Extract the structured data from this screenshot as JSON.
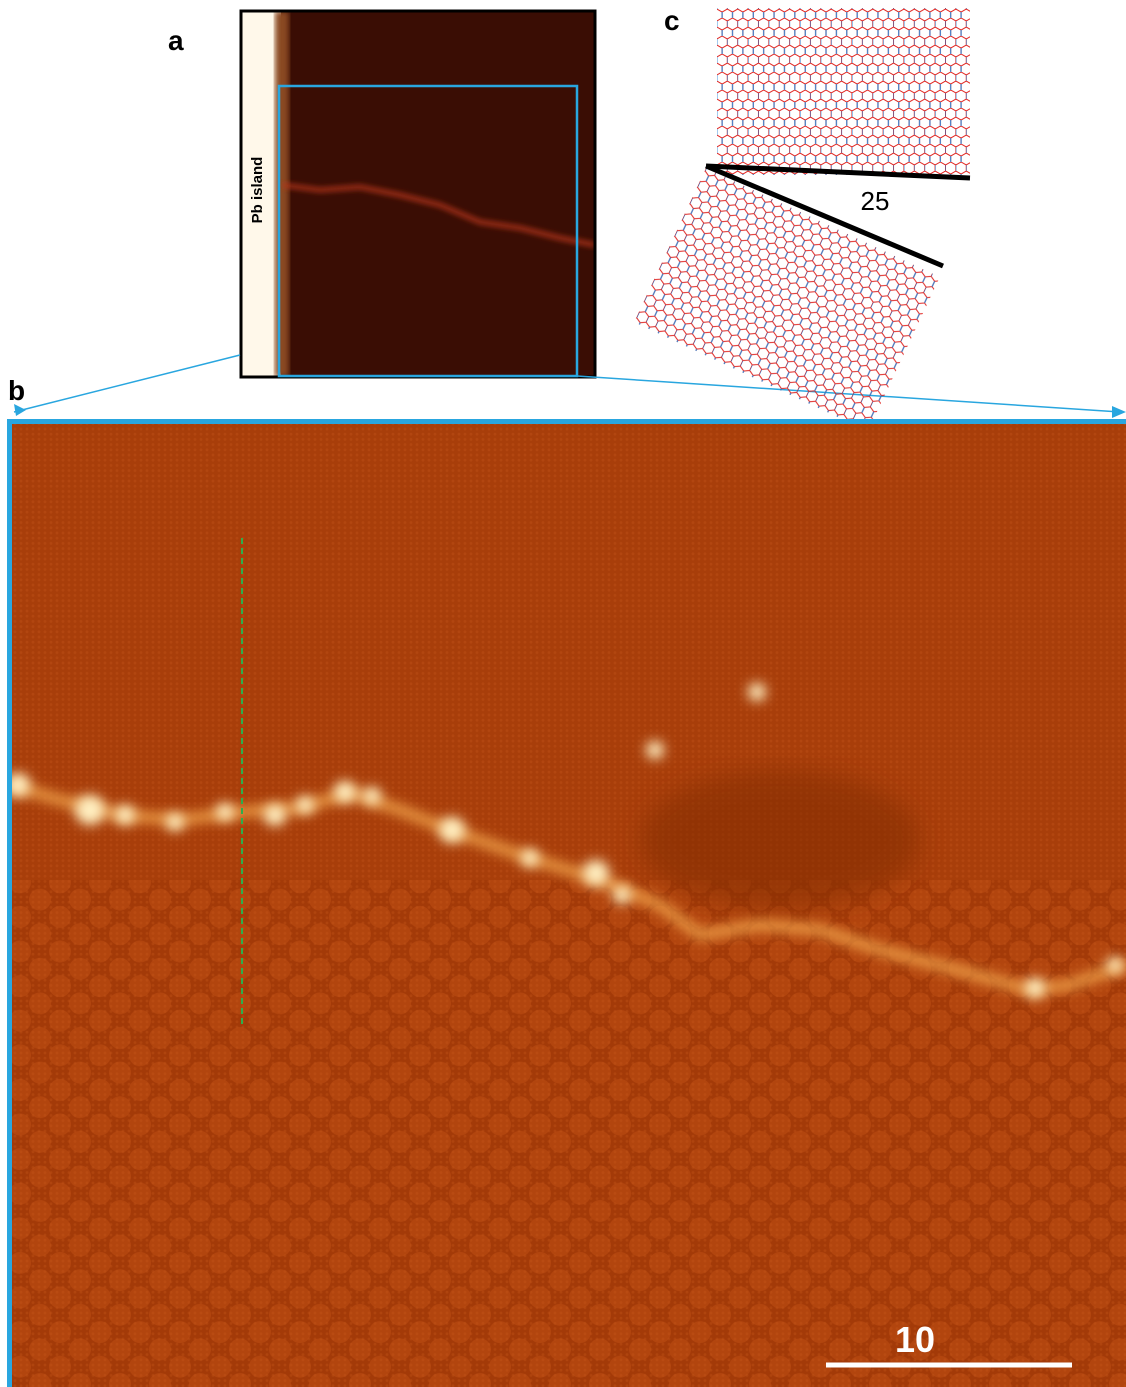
{
  "panel_a": {
    "label": "a",
    "annotation": "Pb island"
  },
  "panel_b": {
    "label": "b",
    "scale_bar": "10"
  },
  "panel_c": {
    "label": "c",
    "angle": "25"
  }
}
